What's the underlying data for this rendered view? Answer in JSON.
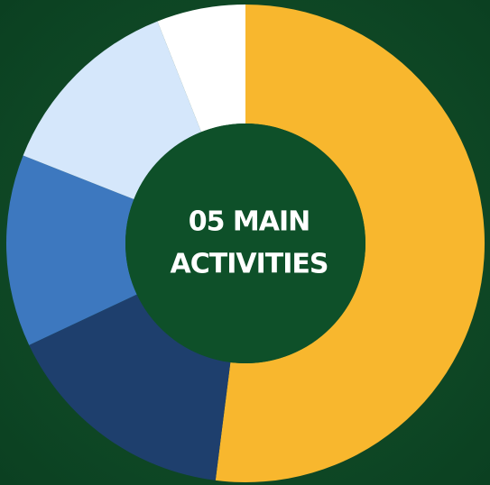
{
  "chart_data": {
    "type": "donut",
    "center_label": [
      "05 MAIN",
      "ACTIVITIES"
    ],
    "categories": [
      null,
      null,
      null,
      null,
      null
    ],
    "values": [
      52,
      16,
      13,
      13,
      6
    ],
    "colors": [
      "#f8b72e",
      "#1e3f6d",
      "#3d78bf",
      "#d5e7fb",
      "#ffffff"
    ]
  }
}
